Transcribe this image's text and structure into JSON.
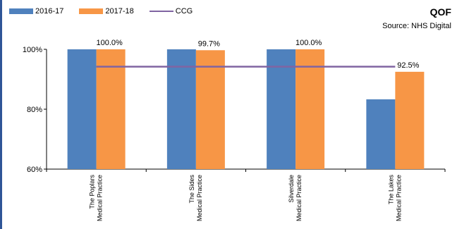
{
  "colors": {
    "series_2016_17": "#4f81bd",
    "series_2017_18": "#f79646",
    "ccg_line": "#8064a2",
    "frame_accent": "#2f5597"
  },
  "header": {
    "title": "QOF",
    "subtitle": "Source: NHS Digital"
  },
  "legend": {
    "items": [
      {
        "label": "2016-17",
        "kind": "bar"
      },
      {
        "label": "2017-18",
        "kind": "bar"
      },
      {
        "label": "CCG",
        "kind": "line"
      }
    ]
  },
  "chart_data": {
    "type": "bar",
    "title": "QOF",
    "subtitle": "Source: NHS Digital",
    "categories": [
      [
        "The Poplars",
        "Medical Practice"
      ],
      [
        "The Sides",
        "Medical Practice"
      ],
      [
        "Silverdale",
        "Medical Practice"
      ],
      [
        "The Lakes",
        "Medical Practice"
      ]
    ],
    "series": [
      {
        "name": "2016-17",
        "values": [
          100.0,
          100.0,
          100.0,
          83.3
        ]
      },
      {
        "name": "2017-18",
        "values": [
          100.0,
          99.7,
          100.0,
          92.5
        ]
      }
    ],
    "reference_line": {
      "name": "CCG",
      "value": 94.2
    },
    "data_labels": {
      "series": "2017-18",
      "labels": [
        "100.0%",
        "99.7%",
        "100.0%",
        "92.5%"
      ]
    },
    "y_ticks": [
      "60%",
      "80%",
      "100%"
    ],
    "ylim": [
      60,
      100
    ],
    "xlabel": "",
    "ylabel": "",
    "grid": false,
    "legend_position": "top-left"
  }
}
